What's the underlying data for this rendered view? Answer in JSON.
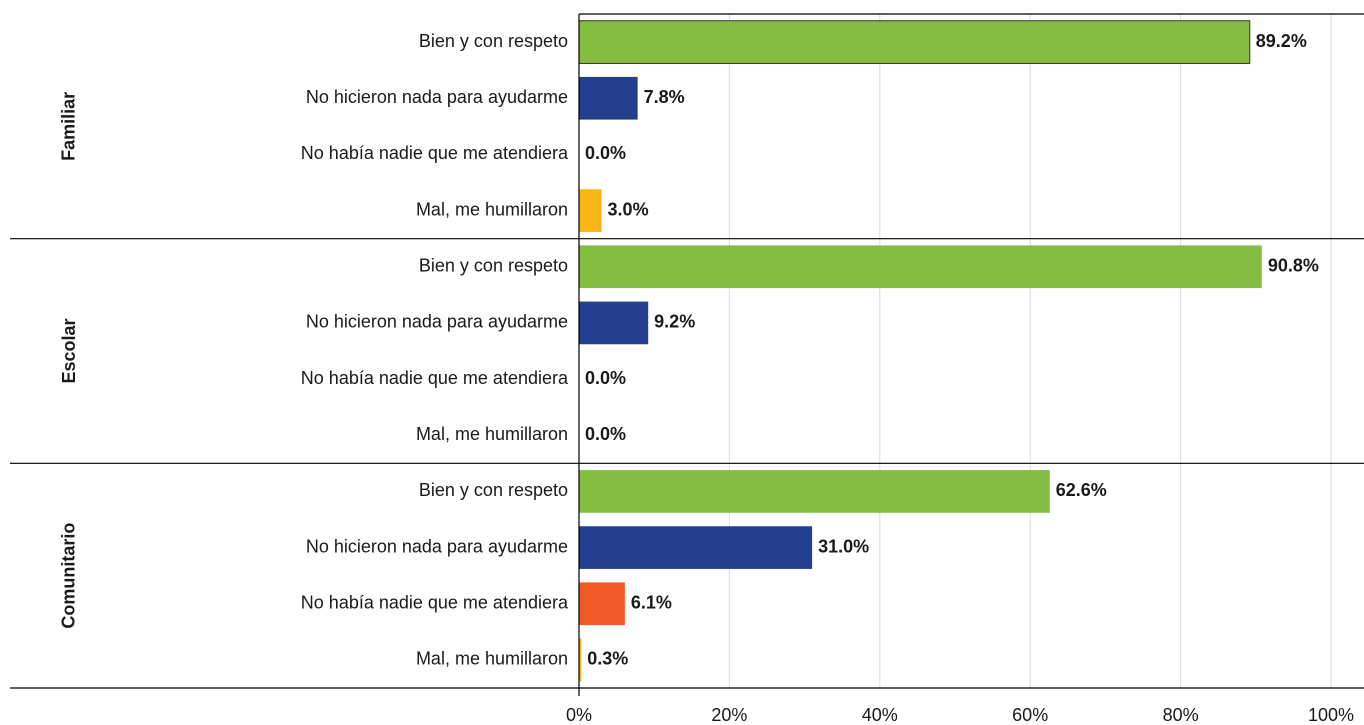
{
  "chart_data": {
    "type": "bar",
    "orientation": "horizontal",
    "groups": [
      {
        "label": "Familiar",
        "categories": [
          "Bien y con respeto",
          "No hicieron nada para ayudarme",
          "No había nadie que me atendiera",
          "Mal, me humillaron"
        ],
        "values": [
          89.2,
          7.8,
          0.0,
          3.0
        ],
        "value_labels": [
          "89.2%",
          "7.8%",
          "0.0%",
          "3.0%"
        ]
      },
      {
        "label": "Escolar",
        "categories": [
          "Bien y con respeto",
          "No hicieron nada para ayudarme",
          "No había nadie que me atendiera",
          "Mal, me humillaron"
        ],
        "values": [
          90.8,
          9.2,
          0.0,
          0.0
        ],
        "value_labels": [
          "90.8%",
          "9.2%",
          "0.0%",
          "0.0%"
        ]
      },
      {
        "label": "Comunitario",
        "categories": [
          "Bien y con respeto",
          "No hicieron nada para ayudarme",
          "No había nadie que me atendiera",
          "Mal, me humillaron"
        ],
        "values": [
          62.6,
          31.0,
          6.1,
          0.3
        ],
        "value_labels": [
          "62.6%",
          "31.0%",
          "6.1%",
          "0.3%"
        ]
      }
    ],
    "colors": [
      "#84bd41",
      "#253f8f",
      "#f05a28",
      "#f8b617"
    ],
    "xlim": [
      0,
      100
    ],
    "xticks": [
      {
        "value": 0,
        "label": "0%"
      },
      {
        "value": 20,
        "label": "20%"
      },
      {
        "value": 40,
        "label": "40%"
      },
      {
        "value": 60,
        "label": "60%"
      },
      {
        "value": 80,
        "label": "80%"
      },
      {
        "value": 100,
        "label": "100%"
      }
    ],
    "grid": true
  }
}
